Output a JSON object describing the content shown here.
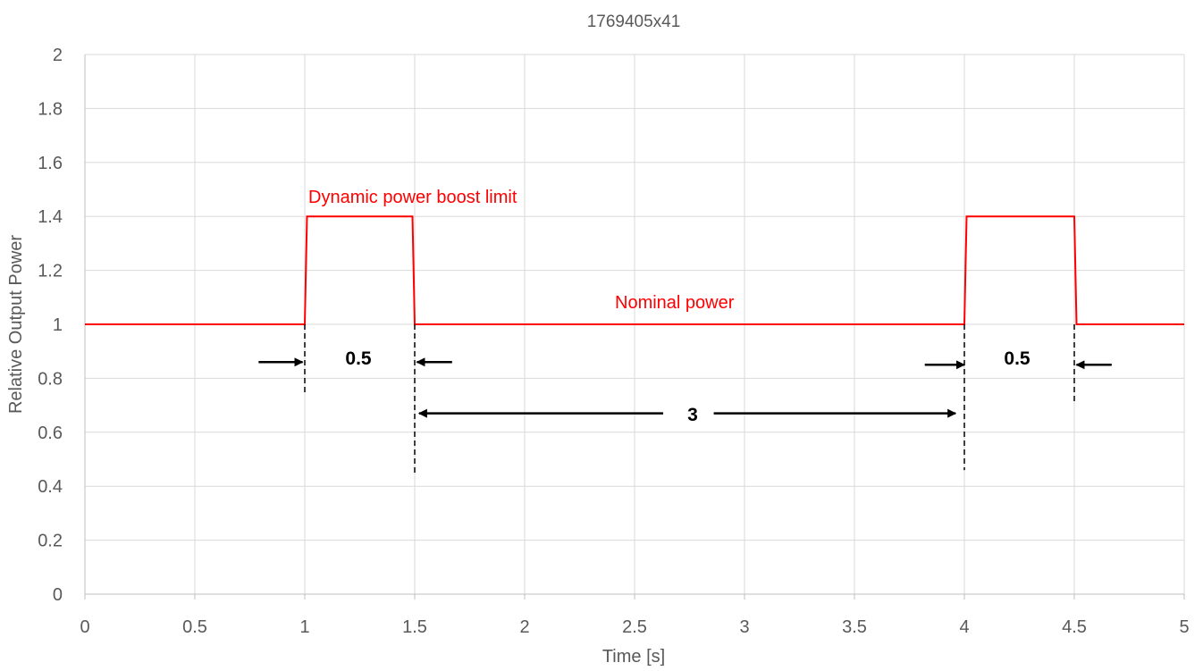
{
  "chart_data": {
    "type": "line",
    "title": "1769405x41",
    "xlabel": "Time [s]",
    "ylabel": "Relative Output Power",
    "xlim": [
      0,
      5
    ],
    "ylim": [
      0,
      2
    ],
    "x_ticks": [
      0,
      0.5,
      1,
      1.5,
      2,
      2.5,
      3,
      3.5,
      4,
      4.5,
      5
    ],
    "x_tick_labels": [
      "0",
      "0.5",
      "1",
      "1.5",
      "2",
      "2.5",
      "3",
      "3.5",
      "4",
      "4.5",
      "5"
    ],
    "y_ticks": [
      0,
      0.2,
      0.4,
      0.6,
      0.8,
      1,
      1.2,
      1.4,
      1.6,
      1.8,
      2
    ],
    "y_tick_labels": [
      "0",
      "0.2",
      "0.4",
      "0.6",
      "0.8",
      "1",
      "1.2",
      "1.4",
      "1.6",
      "1.8",
      "2"
    ],
    "grid": true,
    "legend": "none",
    "series": [
      {
        "color": "#ff0000",
        "x": [
          0,
          1,
          1.01,
          1.49,
          1.5,
          4,
          4.01,
          4.5,
          4.51,
          5
        ],
        "y": [
          1,
          1,
          1.4,
          1.4,
          1,
          1,
          1.4,
          1.4,
          1,
          1
        ]
      }
    ],
    "annotations": {
      "boost_label": "Dynamic power boost limit",
      "nominal_label": "Nominal power",
      "pulse1_duration": "0.5",
      "gap_duration": "3",
      "pulse2_duration": "0.5"
    },
    "colors": {
      "series": "#ff0000",
      "annotation_text": "#ff0000",
      "grid": "#d9d9d9",
      "axis": "#bfbfbf",
      "markers": "#000000"
    }
  }
}
